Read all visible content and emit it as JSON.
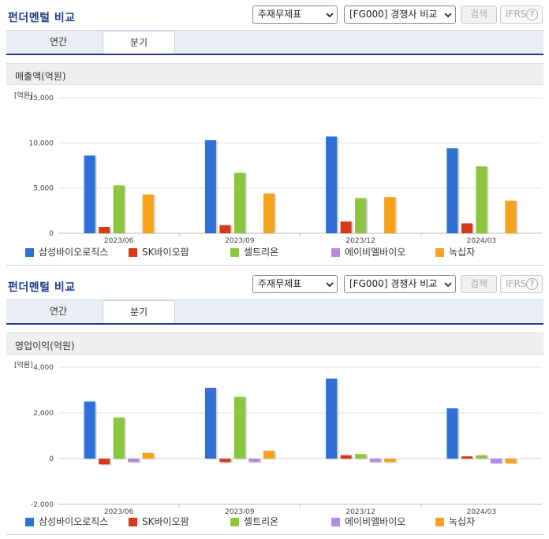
{
  "colors": {
    "series": [
      "#2f6fd6",
      "#d8391a",
      "#8cc63f",
      "#b48be0",
      "#f7a21b"
    ],
    "title": "#1f3c88"
  },
  "panels": [
    {
      "title": "펀더멘털 비교",
      "select_statement": "주재무제표",
      "select_compare": "[FG000] 경쟁사 비교",
      "search_label": "검색",
      "ifrs_label": "IFRS",
      "ifrs_help": "?",
      "tabs": [
        "연간",
        "분기"
      ],
      "chart_data": {
        "type": "bar",
        "title": "매출액(억원)",
        "unit_label": "[억원]",
        "categories": [
          "2023/06",
          "2023/09",
          "2023/12",
          "2024/03"
        ],
        "ylim": [
          0,
          15000
        ],
        "yticks": [
          0,
          5000,
          10000,
          15000
        ],
        "ytick_labels": [
          "0",
          "5,000",
          "10,000",
          "15,000"
        ],
        "grid": true,
        "legend": "bottom",
        "series": [
          {
            "name": "삼성바이오로직스",
            "values": [
              8600,
              10300,
              10700,
              9400
            ]
          },
          {
            "name": "SK바이오팜",
            "values": [
              700,
              900,
              1300,
              1100
            ]
          },
          {
            "name": "셀트리온",
            "values": [
              5300,
              6700,
              3900,
              7400
            ]
          },
          {
            "name": "에이비엘바이오",
            "values": [
              0,
              0,
              0,
              0
            ]
          },
          {
            "name": "녹십자",
            "values": [
              4300,
              4400,
              4000,
              3600
            ]
          }
        ]
      }
    },
    {
      "title": "펀더멘털 비교",
      "select_statement": "주재무제표",
      "select_compare": "[FG000] 경쟁사 비교",
      "search_label": "검색",
      "ifrs_label": "IFRS",
      "ifrs_help": "?",
      "tabs": [
        "연간",
        "분기"
      ],
      "chart_data": {
        "type": "bar",
        "title": "영업이익(억원)",
        "unit_label": "[억원]",
        "categories": [
          "2023/06",
          "2023/09",
          "2023/12",
          "2024/03"
        ],
        "ylim": [
          -2000,
          4000
        ],
        "yticks": [
          -2000,
          0,
          2000,
          4000
        ],
        "ytick_labels": [
          "-2,000",
          "0",
          "2,000",
          "4,000"
        ],
        "grid": true,
        "legend": "bottom",
        "series": [
          {
            "name": "삼성바이오로직스",
            "values": [
              2500,
              3100,
              3500,
              2200
            ]
          },
          {
            "name": "SK바이오팜",
            "values": [
              -250,
              -150,
              150,
              100
            ]
          },
          {
            "name": "셀트리온",
            "values": [
              1800,
              2700,
              200,
              150
            ]
          },
          {
            "name": "에이비엘바이오",
            "values": [
              -150,
              -150,
              -150,
              -200
            ]
          },
          {
            "name": "녹십자",
            "values": [
              250,
              350,
              -150,
              -200
            ]
          }
        ]
      }
    }
  ]
}
